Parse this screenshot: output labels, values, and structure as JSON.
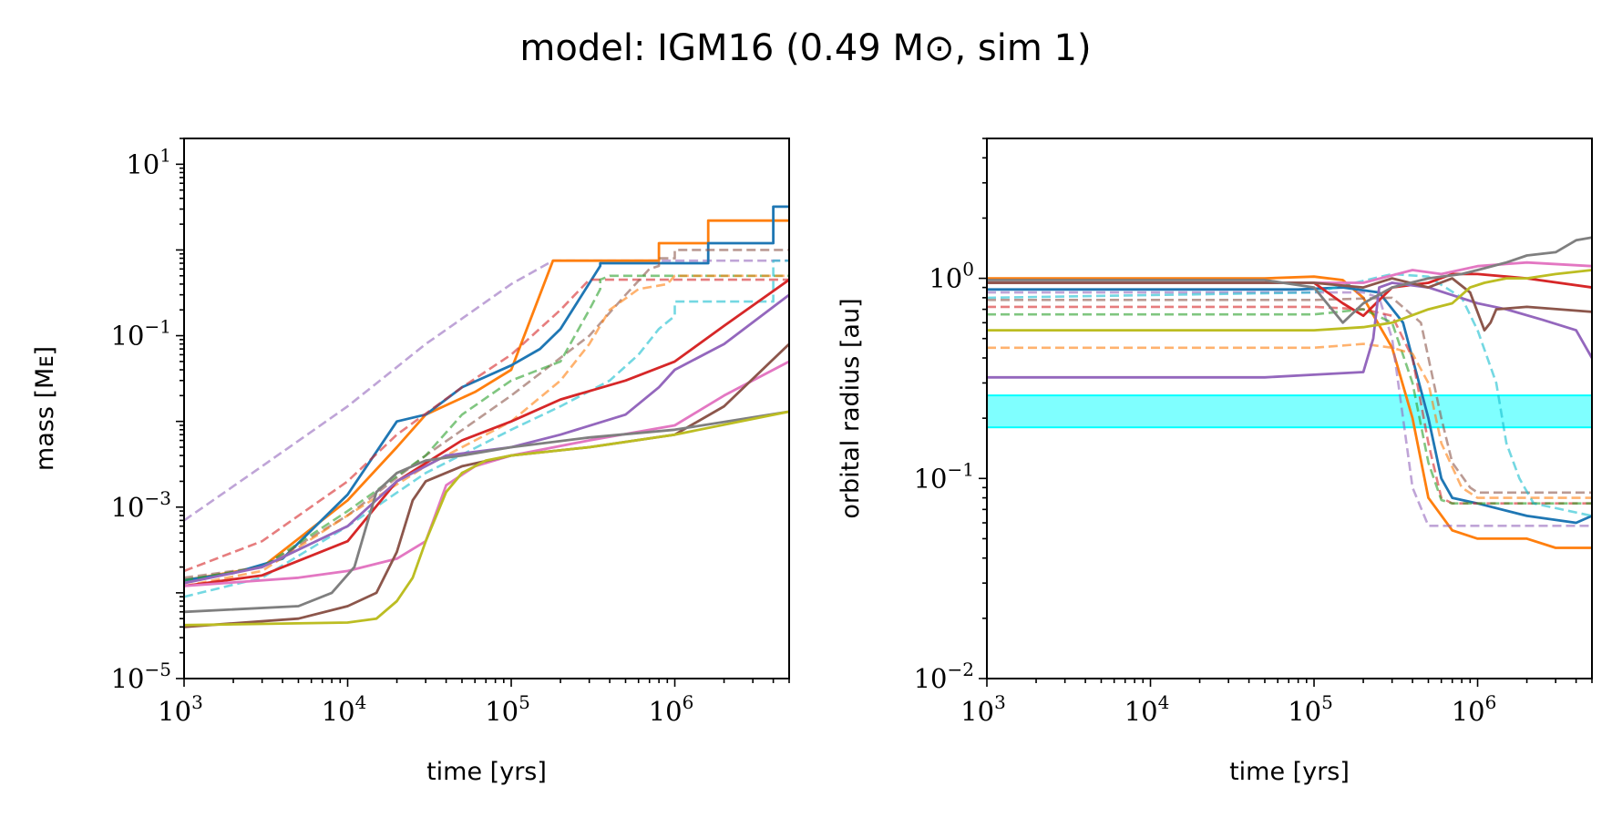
{
  "figure": {
    "suptitle": "model: IGM16 (0.49 M⊙, sim 1)"
  },
  "chart_data": [
    {
      "type": "line",
      "panel": "left",
      "xlabel": "time [yrs]",
      "ylabel": "mass [Mᴇ]",
      "xscale": "log",
      "yscale": "log",
      "xlim": [
        1000,
        5000000
      ],
      "ylim": [
        1e-05,
        20
      ],
      "xticks": [
        {
          "base": "10",
          "exp": "3"
        },
        {
          "base": "10",
          "exp": "4"
        },
        {
          "base": "10",
          "exp": "5"
        },
        {
          "base": "10",
          "exp": "6"
        }
      ],
      "yticks": [
        {
          "base": "10",
          "exp": "−5"
        },
        {
          "base": "10",
          "exp": "−3"
        },
        {
          "base": "10",
          "exp": "−1"
        },
        {
          "base": "10",
          "exp": "1"
        }
      ],
      "series": [
        {
          "name": "purple-dashed",
          "color": "#9467bd",
          "style": "dashed",
          "alpha": 0.6,
          "x": [
            1000,
            3000,
            10000,
            30000,
            100000,
            180000,
            5000000
          ],
          "y": [
            0.0007,
            0.003,
            0.015,
            0.08,
            0.4,
            0.75,
            0.75
          ]
        },
        {
          "name": "orange",
          "color": "#ff7f0e",
          "style": "solid",
          "alpha": 1,
          "x": [
            1000,
            3000,
            10000,
            20000,
            30000,
            60000,
            100000,
            180000,
            800000,
            800000,
            1600000,
            1600000,
            5000000
          ],
          "y": [
            0.00014,
            0.0002,
            0.0012,
            0.005,
            0.012,
            0.022,
            0.04,
            0.75,
            0.75,
            1.2,
            1.2,
            2.2,
            2.2
          ]
        },
        {
          "name": "blue",
          "color": "#1f77b4",
          "style": "solid",
          "alpha": 1,
          "x": [
            1000,
            2000,
            4000,
            10000,
            20000,
            30000,
            50000,
            100000,
            150000,
            200000,
            350000,
            350000,
            1600000,
            1600000,
            4000000,
            4000000,
            5000000
          ],
          "y": [
            0.00014,
            0.00017,
            0.00025,
            0.0014,
            0.01,
            0.012,
            0.025,
            0.045,
            0.07,
            0.12,
            0.65,
            0.7,
            0.7,
            1.2,
            1.2,
            3.2,
            3.2
          ]
        },
        {
          "name": "red-dashed",
          "color": "#d62728",
          "style": "dashed",
          "alpha": 0.6,
          "x": [
            1000,
            3000,
            10000,
            20000,
            50000,
            100000,
            200000,
            300000,
            5000000
          ],
          "y": [
            0.00018,
            0.0004,
            0.002,
            0.007,
            0.025,
            0.06,
            0.2,
            0.45,
            0.45
          ]
        },
        {
          "name": "brown-dashed",
          "color": "#8c564b",
          "style": "dashed",
          "alpha": 0.6,
          "x": [
            1000,
            3000,
            10000,
            30000,
            100000,
            300000,
            500000,
            700000,
            800000,
            800000,
            1000000,
            1000000,
            5000000
          ],
          "y": [
            0.00015,
            0.0002,
            0.0008,
            0.004,
            0.02,
            0.1,
            0.3,
            0.6,
            0.65,
            0.8,
            0.8,
            1,
            1
          ]
        },
        {
          "name": "green-dashed",
          "color": "#2ca02c",
          "style": "dashed",
          "alpha": 0.6,
          "x": [
            1000,
            3000,
            10000,
            30000,
            50000,
            100000,
            200000,
            300000,
            350000,
            350000,
            400000,
            5000000
          ],
          "y": [
            0.00014,
            0.0002,
            0.0009,
            0.004,
            0.012,
            0.03,
            0.05,
            0.2,
            0.35,
            0.45,
            0.5,
            0.5
          ]
        },
        {
          "name": "orange-dashed",
          "color": "#ff7f0e",
          "style": "dashed",
          "alpha": 0.6,
          "x": [
            1000,
            3000,
            10000,
            30000,
            100000,
            200000,
            300000,
            400000,
            600000,
            900000,
            1000000,
            5000000
          ],
          "y": [
            0.00012,
            0.00018,
            0.0008,
            0.003,
            0.01,
            0.03,
            0.08,
            0.2,
            0.35,
            0.4,
            0.5,
            0.5
          ]
        },
        {
          "name": "cyan-dashed",
          "color": "#17becf",
          "style": "dashed",
          "alpha": 0.6,
          "x": [
            1000,
            3000,
            10000,
            30000,
            100000,
            200000,
            400000,
            600000,
            800000,
            1000000,
            1000000,
            4000000,
            4000000,
            5000000
          ],
          "y": [
            9e-05,
            0.00015,
            0.0006,
            0.0025,
            0.008,
            0.015,
            0.03,
            0.06,
            0.12,
            0.17,
            0.25,
            0.25,
            0.75,
            0.75
          ]
        },
        {
          "name": "red",
          "color": "#d62728",
          "style": "solid",
          "alpha": 1,
          "x": [
            1000,
            3000,
            10000,
            20000,
            50000,
            100000,
            200000,
            500000,
            1000000,
            2000000,
            5000000
          ],
          "y": [
            0.00012,
            0.00016,
            0.0004,
            0.002,
            0.006,
            0.01,
            0.018,
            0.03,
            0.05,
            0.13,
            0.45
          ]
        },
        {
          "name": "purple",
          "color": "#9467bd",
          "style": "solid",
          "alpha": 1,
          "x": [
            1000,
            3000,
            10000,
            20000,
            40000,
            100000,
            200000,
            500000,
            800000,
            1000000,
            2000000,
            5000000
          ],
          "y": [
            0.00013,
            0.0002,
            0.0006,
            0.002,
            0.004,
            0.005,
            0.007,
            0.012,
            0.025,
            0.04,
            0.08,
            0.3
          ]
        },
        {
          "name": "pink",
          "color": "#e377c2",
          "style": "solid",
          "alpha": 1,
          "x": [
            1000,
            5000,
            10000,
            20000,
            30000,
            40000,
            60000,
            100000,
            300000,
            1000000,
            2000000,
            5000000
          ],
          "y": [
            0.00012,
            0.00015,
            0.00018,
            0.00025,
            0.0004,
            0.0018,
            0.003,
            0.004,
            0.006,
            0.009,
            0.02,
            0.05
          ]
        },
        {
          "name": "brown",
          "color": "#8c564b",
          "style": "solid",
          "alpha": 1,
          "x": [
            1000,
            5000,
            10000,
            15000,
            20000,
            25000,
            30000,
            50000,
            100000,
            300000,
            1000000,
            2000000,
            5000000
          ],
          "y": [
            4e-05,
            5e-05,
            7e-05,
            0.0001,
            0.0003,
            0.0012,
            0.002,
            0.003,
            0.004,
            0.005,
            0.007,
            0.015,
            0.08
          ]
        },
        {
          "name": "gray",
          "color": "#7f7f7f",
          "style": "solid",
          "alpha": 1,
          "x": [
            1000,
            5000,
            8000,
            11000,
            13000,
            15000,
            20000,
            30000,
            50000,
            100000,
            300000,
            1000000,
            5000000
          ],
          "y": [
            6e-05,
            7e-05,
            0.0001,
            0.0002,
            0.0006,
            0.0015,
            0.0025,
            0.0035,
            0.004,
            0.005,
            0.0065,
            0.008,
            0.013
          ]
        },
        {
          "name": "olive",
          "color": "#bcbd22",
          "style": "solid",
          "alpha": 1,
          "x": [
            1000,
            10000,
            15000,
            20000,
            25000,
            30000,
            40000,
            50000,
            70000,
            100000,
            300000,
            1000000,
            5000000
          ],
          "y": [
            4.2e-05,
            4.5e-05,
            5e-05,
            8e-05,
            0.00015,
            0.0004,
            0.0015,
            0.0025,
            0.0035,
            0.004,
            0.005,
            0.007,
            0.013
          ]
        }
      ]
    },
    {
      "type": "line",
      "panel": "right",
      "xlabel": "time [yrs]",
      "ylabel": "orbital radius [au]",
      "xscale": "log",
      "yscale": "log",
      "xlim": [
        1000,
        5000000
      ],
      "ylim": [
        0.01,
        5
      ],
      "xticks": [
        {
          "base": "10",
          "exp": "3"
        },
        {
          "base": "10",
          "exp": "4"
        },
        {
          "base": "10",
          "exp": "5"
        },
        {
          "base": "10",
          "exp": "6"
        }
      ],
      "yticks": [
        {
          "base": "10",
          "exp": "−2"
        },
        {
          "base": "10",
          "exp": "−1"
        },
        {
          "base": "10",
          "exp": "0"
        }
      ],
      "band": {
        "y_low": 0.18,
        "y_high": 0.26,
        "color": "#00ffff",
        "alpha": 0.5
      },
      "series": [
        {
          "name": "orange",
          "color": "#ff7f0e",
          "style": "solid",
          "alpha": 1,
          "x": [
            1000,
            50000,
            100000,
            150000,
            200000,
            300000,
            400000,
            500000,
            700000,
            1000000,
            2000000,
            3000000,
            5000000
          ],
          "y": [
            1,
            1,
            1.02,
            0.98,
            0.8,
            0.45,
            0.2,
            0.08,
            0.055,
            0.05,
            0.05,
            0.045,
            0.045
          ]
        },
        {
          "name": "blue",
          "color": "#1f77b4",
          "style": "solid",
          "alpha": 1,
          "x": [
            1000,
            80000,
            150000,
            250000,
            350000,
            500000,
            600000,
            700000,
            1000000,
            2000000,
            4000000,
            5000000
          ],
          "y": [
            0.88,
            0.88,
            0.9,
            0.85,
            0.6,
            0.2,
            0.1,
            0.08,
            0.075,
            0.065,
            0.06,
            0.065
          ]
        },
        {
          "name": "purple-dashed",
          "color": "#9467bd",
          "style": "dashed",
          "alpha": 0.6,
          "x": [
            1000,
            100000,
            200000,
            250000,
            300000,
            350000,
            400000,
            500000,
            700000,
            5000000
          ],
          "y": [
            0.85,
            0.85,
            0.85,
            0.8,
            0.5,
            0.2,
            0.09,
            0.058,
            0.058,
            0.058
          ]
        },
        {
          "name": "red-dashed",
          "color": "#d62728",
          "style": "dashed",
          "alpha": 0.6,
          "x": [
            1000,
            100000,
            200000,
            300000,
            400000,
            500000,
            600000,
            700000,
            5000000
          ],
          "y": [
            0.72,
            0.72,
            0.7,
            0.65,
            0.4,
            0.15,
            0.08,
            0.075,
            0.075
          ]
        },
        {
          "name": "green-dashed",
          "color": "#2ca02c",
          "style": "dashed",
          "alpha": 0.6,
          "x": [
            1000,
            100000,
            200000,
            300000,
            400000,
            500000,
            600000,
            700000,
            5000000
          ],
          "y": [
            0.66,
            0.66,
            0.7,
            0.6,
            0.3,
            0.12,
            0.078,
            0.075,
            0.075
          ]
        },
        {
          "name": "orange-dashed",
          "color": "#ff7f0e",
          "style": "dashed",
          "alpha": 0.6,
          "x": [
            1000,
            100000,
            200000,
            300000,
            400000,
            500000,
            600000,
            800000,
            1000000,
            5000000
          ],
          "y": [
            0.45,
            0.45,
            0.47,
            0.45,
            0.42,
            0.3,
            0.15,
            0.09,
            0.08,
            0.08
          ]
        },
        {
          "name": "brown-dashed",
          "color": "#8c564b",
          "style": "dashed",
          "alpha": 0.6,
          "x": [
            1000,
            100000,
            300000,
            450000,
            600000,
            700000,
            900000,
            1000000,
            5000000
          ],
          "y": [
            0.78,
            0.78,
            0.8,
            0.6,
            0.2,
            0.12,
            0.09,
            0.085,
            0.085
          ]
        },
        {
          "name": "cyan-dashed",
          "color": "#17becf",
          "style": "dashed",
          "alpha": 0.6,
          "x": [
            1000,
            100000,
            300000,
            500000,
            800000,
            1000000,
            1300000,
            1500000,
            1800000,
            2200000,
            5000000
          ],
          "y": [
            0.8,
            0.85,
            1.05,
            1.02,
            0.8,
            0.55,
            0.3,
            0.15,
            0.1,
            0.075,
            0.065
          ]
        },
        {
          "name": "red",
          "color": "#d62728",
          "style": "solid",
          "alpha": 1,
          "x": [
            1000,
            100000,
            150000,
            200000,
            300000,
            500000,
            700000,
            1000000,
            2000000,
            5000000
          ],
          "y": [
            0.95,
            0.95,
            0.75,
            0.65,
            0.9,
            0.95,
            1.05,
            1.05,
            1,
            0.9
          ]
        },
        {
          "name": "purple",
          "color": "#9467bd",
          "style": "solid",
          "alpha": 1,
          "x": [
            1000,
            50000,
            100000,
            200000,
            230000,
            250000,
            300000,
            500000,
            1000000,
            1500000,
            2500000,
            4000000,
            5000000
          ],
          "y": [
            0.32,
            0.32,
            0.33,
            0.34,
            0.5,
            0.9,
            0.95,
            0.9,
            0.75,
            0.7,
            0.62,
            0.55,
            0.4
          ]
        },
        {
          "name": "pink",
          "color": "#e377c2",
          "style": "solid",
          "alpha": 1,
          "x": [
            1000,
            100000,
            200000,
            400000,
            600000,
            1000000,
            2000000,
            5000000
          ],
          "y": [
            0.95,
            0.95,
            0.95,
            1.1,
            1.05,
            1.15,
            1.2,
            1.15
          ]
        },
        {
          "name": "brown",
          "color": "#8c564b",
          "style": "solid",
          "alpha": 1,
          "x": [
            1000,
            100000,
            200000,
            300000,
            500000,
            700000,
            900000,
            1100000,
            1200000,
            1300000,
            2000000,
            5000000
          ],
          "y": [
            0.95,
            0.95,
            0.9,
            1,
            0.9,
            1,
            0.85,
            0.55,
            0.6,
            0.7,
            0.72,
            0.68
          ]
        },
        {
          "name": "gray",
          "color": "#7f7f7f",
          "style": "solid",
          "alpha": 1,
          "x": [
            1000,
            50000,
            100000,
            150000,
            200000,
            300000,
            500000,
            800000,
            1000000,
            1500000,
            2000000,
            3000000,
            4000000,
            5000000
          ],
          "y": [
            0.98,
            0.98,
            0.9,
            0.6,
            0.75,
            0.9,
            1,
            1.05,
            1.1,
            1.2,
            1.3,
            1.35,
            1.55,
            1.6
          ]
        },
        {
          "name": "olive",
          "color": "#bcbd22",
          "style": "solid",
          "alpha": 1,
          "x": [
            1000,
            100000,
            200000,
            300000,
            500000,
            700000,
            900000,
            1100000,
            1500000,
            2000000,
            3000000,
            5000000
          ],
          "y": [
            0.55,
            0.55,
            0.57,
            0.6,
            0.7,
            0.75,
            0.9,
            0.95,
            1,
            1,
            1.05,
            1.1
          ]
        }
      ]
    }
  ]
}
